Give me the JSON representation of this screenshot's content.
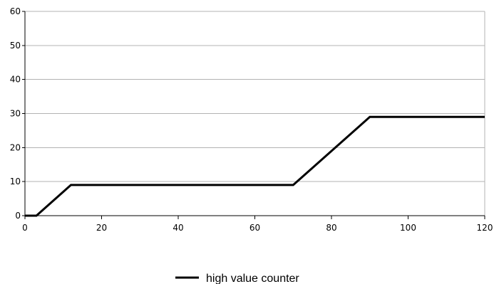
{
  "chart_data": {
    "type": "line",
    "title": "",
    "xlabel": "",
    "ylabel": "",
    "xlim": [
      0,
      120
    ],
    "ylim": [
      0,
      60
    ],
    "x_ticks": [
      "0",
      "20",
      "40",
      "60",
      "80",
      "100",
      "120"
    ],
    "y_ticks": [
      "0",
      "10",
      "20",
      "30",
      "40",
      "50",
      "60"
    ],
    "grid": true,
    "legend_position": "bottom",
    "series": [
      {
        "name": "high value counter",
        "color": "#000000",
        "points": [
          {
            "x": 0,
            "y": 0
          },
          {
            "x": 3,
            "y": 0
          },
          {
            "x": 12,
            "y": 9
          },
          {
            "x": 70,
            "y": 9
          },
          {
            "x": 90,
            "y": 29
          },
          {
            "x": 120,
            "y": 29
          }
        ]
      }
    ]
  }
}
